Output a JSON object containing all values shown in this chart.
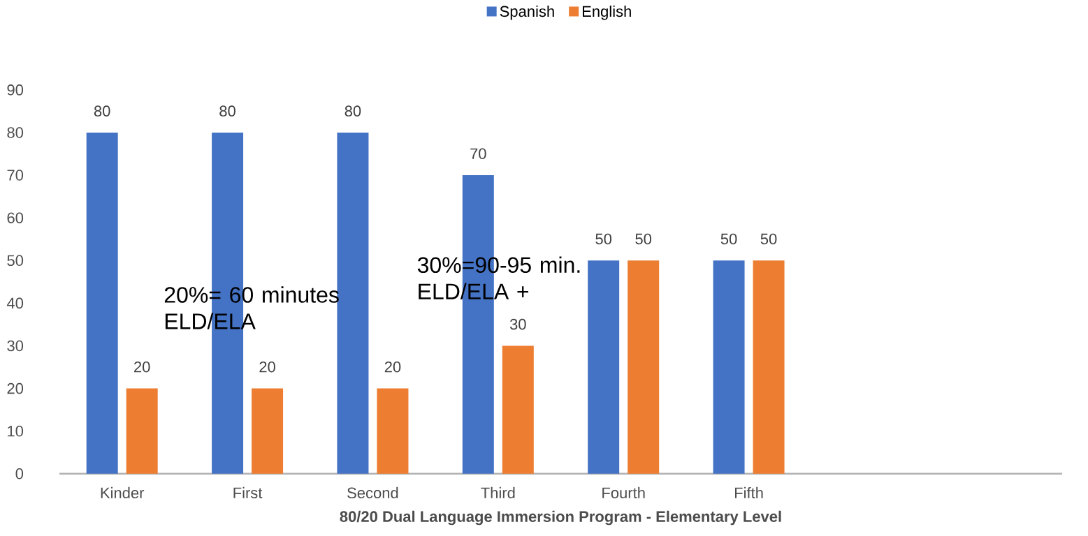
{
  "chart_data": {
    "type": "bar",
    "xlabel": "80/20 Dual Language Immersion Program - Elementary Level",
    "categories": [
      "Kinder",
      "First",
      "Second",
      "Third",
      "Fourth",
      "Fifth",
      null,
      null
    ],
    "series": [
      {
        "name": "Spanish",
        "color": "#4472c4",
        "values": [
          80,
          80,
          80,
          70,
          50,
          50,
          null,
          null
        ]
      },
      {
        "name": "English",
        "color": "#ed7d31",
        "values": [
          20,
          20,
          20,
          30,
          50,
          50,
          null,
          null
        ]
      }
    ],
    "ylim": [
      0,
      90
    ],
    "yticks": [
      0,
      10,
      20,
      30,
      40,
      50,
      60,
      70,
      80,
      90
    ],
    "data_labels": true,
    "legend": "top",
    "grid": false,
    "annotations": [
      "20%= 60 minutes ELD/ELA",
      "30%=90-95 min. ELD/ELA +"
    ]
  }
}
